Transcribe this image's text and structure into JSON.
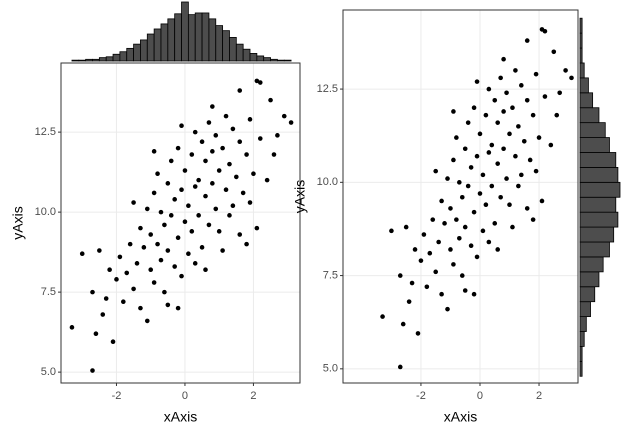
{
  "chart_data": [
    {
      "type": "scatter",
      "xlabel": "xAxis",
      "ylabel": "yAxis",
      "color": "#000000",
      "grid": true,
      "xlim": [
        -3.62,
        3.36
      ],
      "ylim": [
        4.66,
        14.66
      ],
      "xticks": [
        -2,
        0,
        2
      ],
      "yticks": [
        {
          "value": 5,
          "label": "5.0"
        },
        7.5,
        {
          "value": 10,
          "label": "10.0"
        },
        12.5
      ],
      "x": [
        -3.3,
        -2.7,
        -2.6,
        -2.1,
        -3.0,
        -2.7,
        -2.5,
        2.1,
        2.2,
        3.1,
        2.9,
        2.5,
        1.6,
        2.6,
        2.1,
        1.8,
        1.6,
        -0.2,
        0.6,
        1.1,
        -2.3,
        -2.0,
        -1.9,
        -1.8,
        -1.7,
        -1.6,
        -1.5,
        -1.4,
        -1.3,
        -1.3,
        -1.2,
        -1.1,
        -1.0,
        -1.0,
        -0.9,
        -0.9,
        -0.8,
        -0.8,
        -0.7,
        -0.7,
        -0.6,
        -0.6,
        -0.5,
        -0.5,
        -0.4,
        -0.4,
        -0.3,
        -0.3,
        -0.2,
        -0.2,
        -0.1,
        -0.1,
        0.0,
        0.0,
        0.1,
        0.1,
        0.2,
        0.2,
        0.3,
        0.3,
        0.4,
        0.4,
        0.5,
        0.5,
        0.6,
        0.6,
        0.7,
        0.7,
        0.8,
        0.8,
        0.9,
        0.9,
        1.0,
        1.0,
        1.1,
        1.2,
        1.2,
        1.3,
        1.4,
        1.4,
        1.5,
        1.6,
        1.7,
        1.8,
        1.9,
        2.0,
        2.2,
        2.4,
        2.7,
        -2.2,
        -1.1,
        -0.5,
        0.3,
        1.3,
        -1.5,
        -2.4,
        0.8,
        -0.1,
        1.9,
        -0.9
      ],
      "values": [
        6.4,
        5.05,
        6.2,
        5.95,
        8.7,
        7.5,
        8.8,
        14.1,
        14.05,
        12.8,
        13.0,
        13.5,
        13.8,
        11.8,
        9.5,
        9.0,
        9.3,
        7.0,
        8.2,
        8.8,
        7.3,
        7.9,
        8.6,
        7.2,
        8.1,
        9.0,
        7.6,
        8.4,
        9.5,
        7.0,
        8.9,
        10.1,
        8.2,
        9.3,
        10.6,
        7.8,
        9.0,
        11.2,
        8.5,
        10.0,
        9.6,
        7.5,
        10.9,
        8.8,
        9.9,
        11.6,
        8.3,
        10.4,
        9.2,
        12.0,
        10.7,
        8.0,
        9.7,
        11.3,
        10.2,
        8.7,
        11.8,
        9.4,
        10.8,
        12.5,
        9.9,
        11.0,
        8.9,
        12.2,
        10.5,
        11.6,
        9.6,
        12.8,
        10.9,
        11.9,
        10.1,
        12.4,
        11.3,
        9.4,
        12.0,
        10.7,
        13.0,
        11.5,
        10.2,
        12.6,
        11.1,
        12.2,
        10.6,
        11.8,
        12.9,
        11.2,
        12.3,
        11.0,
        12.4,
        8.2,
        6.6,
        7.1,
        8.4,
        9.9,
        10.3,
        6.8,
        13.3,
        12.7,
        10.3,
        11.9
      ],
      "marginal": {
        "type": "histogram",
        "position": "top",
        "color": "#4d4d4d",
        "bins": [
          -3.3,
          -3.1,
          -2.9,
          -2.7,
          -2.5,
          -2.3,
          -2.1,
          -1.9,
          -1.7,
          -1.5,
          -1.3,
          -1.1,
          -0.9,
          -0.7,
          -0.5,
          -0.3,
          -0.1,
          0.1,
          0.3,
          0.5,
          0.7,
          0.9,
          1.1,
          1.3,
          1.5,
          1.7,
          1.9,
          2.1,
          2.3,
          2.5,
          2.7,
          2.9,
          3.1
        ],
        "counts": [
          1,
          1,
          2,
          2,
          4,
          5,
          8,
          11,
          15,
          20,
          25,
          32,
          38,
          44,
          50,
          56,
          70,
          55,
          57,
          57,
          50,
          42,
          36,
          28,
          20,
          14,
          9,
          6,
          4,
          2,
          1,
          1
        ]
      }
    },
    {
      "type": "scatter",
      "xlabel": "xAxis",
      "ylabel": "yAxis",
      "color": "#000000",
      "grid": true,
      "xlim": [
        -4.64,
        3.32
      ],
      "ylim": [
        4.62,
        14.62
      ],
      "xticks": [
        -2,
        0,
        2
      ],
      "yticks": [
        {
          "value": 5,
          "label": "5.0"
        },
        7.5,
        {
          "value": 10,
          "label": "10.0"
        },
        12.5
      ],
      "x": [
        -3.3,
        -2.7,
        -2.6,
        -2.1,
        -3.0,
        -2.7,
        -2.5,
        2.1,
        2.2,
        3.1,
        2.9,
        2.5,
        1.6,
        2.6,
        2.1,
        1.8,
        1.6,
        -0.2,
        0.6,
        1.1,
        -2.3,
        -2.0,
        -1.9,
        -1.8,
        -1.7,
        -1.6,
        -1.5,
        -1.4,
        -1.3,
        -1.3,
        -1.2,
        -1.1,
        -1.0,
        -1.0,
        -0.9,
        -0.9,
        -0.8,
        -0.8,
        -0.7,
        -0.7,
        -0.6,
        -0.6,
        -0.5,
        -0.5,
        -0.4,
        -0.4,
        -0.3,
        -0.3,
        -0.2,
        -0.2,
        -0.1,
        -0.1,
        0.0,
        0.0,
        0.1,
        0.1,
        0.2,
        0.2,
        0.3,
        0.3,
        0.4,
        0.4,
        0.5,
        0.5,
        0.6,
        0.6,
        0.7,
        0.7,
        0.8,
        0.8,
        0.9,
        0.9,
        1.0,
        1.0,
        1.1,
        1.2,
        1.2,
        1.3,
        1.4,
        1.4,
        1.5,
        1.6,
        1.7,
        1.8,
        1.9,
        2.0,
        2.2,
        2.4,
        2.7,
        -2.2,
        -1.1,
        -0.5,
        0.3,
        1.3,
        -1.5,
        -2.4,
        0.8,
        -0.1,
        1.9,
        -0.9
      ],
      "values": [
        6.4,
        5.05,
        6.2,
        5.95,
        8.7,
        7.5,
        8.8,
        14.1,
        14.05,
        12.8,
        13.0,
        13.5,
        13.8,
        11.8,
        9.5,
        9.0,
        9.3,
        7.0,
        8.2,
        8.8,
        7.3,
        7.9,
        8.6,
        7.2,
        8.1,
        9.0,
        7.6,
        8.4,
        9.5,
        7.0,
        8.9,
        10.1,
        8.2,
        9.3,
        10.6,
        7.8,
        9.0,
        11.2,
        8.5,
        10.0,
        9.6,
        7.5,
        10.9,
        8.8,
        9.9,
        11.6,
        8.3,
        10.4,
        9.2,
        12.0,
        10.7,
        8.0,
        9.7,
        11.3,
        10.2,
        8.7,
        11.8,
        9.4,
        10.8,
        12.5,
        9.9,
        11.0,
        8.9,
        12.2,
        10.5,
        11.6,
        9.6,
        12.8,
        10.9,
        11.9,
        10.1,
        12.4,
        11.3,
        9.4,
        12.0,
        10.7,
        13.0,
        11.5,
        10.2,
        12.6,
        11.1,
        12.2,
        10.6,
        11.8,
        12.9,
        11.2,
        12.3,
        11.0,
        12.4,
        8.2,
        6.6,
        7.1,
        8.4,
        9.9,
        10.3,
        6.8,
        13.3,
        12.7,
        10.3,
        11.9
      ],
      "marginal": {
        "type": "histogram",
        "position": "right",
        "color": "#4d4d4d",
        "bins": [
          4.8,
          5.2,
          5.6,
          6.0,
          6.4,
          6.8,
          7.2,
          7.6,
          8.0,
          8.4,
          8.8,
          9.2,
          9.6,
          10.0,
          10.4,
          10.8,
          11.2,
          11.6,
          12.0,
          12.4,
          12.8,
          13.2,
          13.6,
          14.0,
          14.4
        ],
        "counts": [
          1,
          1,
          2,
          3,
          5,
          7,
          9,
          11,
          14,
          16,
          18,
          17,
          19,
          18,
          17,
          14,
          12,
          9,
          6,
          4,
          2,
          1,
          1,
          1
        ]
      }
    }
  ]
}
